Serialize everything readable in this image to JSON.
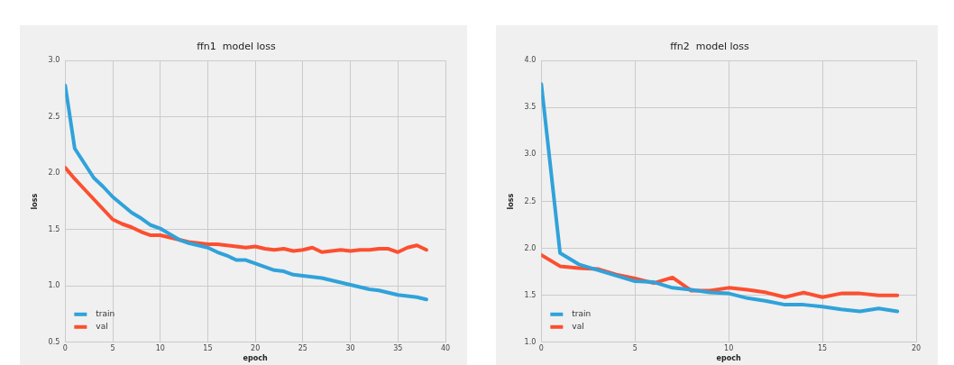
{
  "chart_data": [
    {
      "type": "line",
      "title": "ffn1  model loss",
      "xlabel": "epoch",
      "ylabel": "loss",
      "x": [
        0,
        1,
        2,
        3,
        4,
        5,
        6,
        7,
        8,
        9,
        10,
        11,
        12,
        13,
        14,
        15,
        16,
        17,
        18,
        19,
        20,
        21,
        22,
        23,
        24,
        25,
        26,
        27,
        28,
        29,
        30,
        31,
        32,
        33,
        34,
        35,
        36,
        37,
        38
      ],
      "series": [
        {
          "name": "train",
          "color": "#30a2da",
          "values": [
            2.78,
            2.22,
            2.09,
            1.96,
            1.88,
            1.79,
            1.72,
            1.65,
            1.6,
            1.54,
            1.51,
            1.46,
            1.41,
            1.38,
            1.36,
            1.34,
            1.3,
            1.27,
            1.23,
            1.23,
            1.2,
            1.17,
            1.14,
            1.13,
            1.1,
            1.09,
            1.08,
            1.07,
            1.05,
            1.03,
            1.01,
            0.99,
            0.97,
            0.96,
            0.94,
            0.92,
            0.91,
            0.9,
            0.88
          ]
        },
        {
          "name": "val",
          "color": "#fc4f30",
          "values": [
            2.05,
            1.95,
            1.86,
            1.77,
            1.68,
            1.59,
            1.55,
            1.52,
            1.48,
            1.45,
            1.45,
            1.43,
            1.41,
            1.39,
            1.38,
            1.37,
            1.37,
            1.36,
            1.35,
            1.34,
            1.35,
            1.33,
            1.32,
            1.33,
            1.31,
            1.32,
            1.34,
            1.3,
            1.31,
            1.32,
            1.31,
            1.32,
            1.32,
            1.33,
            1.33,
            1.3,
            1.34,
            1.36,
            1.32
          ]
        }
      ],
      "xlim": [
        0,
        40
      ],
      "xticks": [
        0,
        5,
        10,
        15,
        20,
        25,
        30,
        35,
        40
      ],
      "ylim": [
        0.5,
        3.0
      ],
      "yticks": [
        0.5,
        {
          "value": 1,
          "label": "1.0"
        },
        1.5,
        {
          "value": 2,
          "label": "2.0"
        },
        2.5,
        {
          "value": 3,
          "label": "3.0"
        }
      ],
      "grid": true,
      "legend": "bottom left",
      "marker": "none",
      "line_style": "solid"
    },
    {
      "type": "line",
      "title": "ffn2  model loss",
      "xlabel": "epoch",
      "ylabel": "loss",
      "x": [
        0,
        1,
        2,
        3,
        4,
        5,
        6,
        7,
        8,
        9,
        10,
        11,
        12,
        13,
        14,
        15,
        16,
        17,
        18,
        19
      ],
      "series": [
        {
          "name": "train",
          "color": "#30a2da",
          "values": [
            3.75,
            1.95,
            1.83,
            1.77,
            1.71,
            1.65,
            1.64,
            1.58,
            1.56,
            1.53,
            1.52,
            1.47,
            1.44,
            1.4,
            1.4,
            1.38,
            1.35,
            1.33,
            1.36,
            1.33
          ]
        },
        {
          "name": "val",
          "color": "#fc4f30",
          "values": [
            1.93,
            1.81,
            1.79,
            1.78,
            1.72,
            1.68,
            1.63,
            1.69,
            1.55,
            1.55,
            1.58,
            1.56,
            1.53,
            1.48,
            1.53,
            1.48,
            1.52,
            1.52,
            1.5,
            1.5
          ]
        }
      ],
      "xlim": [
        0,
        20
      ],
      "xticks": [
        0,
        5,
        10,
        15,
        20
      ],
      "ylim": [
        1.0,
        4.0
      ],
      "yticks": [
        {
          "value": 1,
          "label": "1.0"
        },
        1.5,
        {
          "value": 2,
          "label": "2.0"
        },
        2.5,
        {
          "value": 3,
          "label": "3.0"
        },
        3.5,
        {
          "value": 4,
          "label": "4.0"
        }
      ],
      "grid": true,
      "legend": "bottom left",
      "marker": "none",
      "line_style": "solid"
    }
  ]
}
